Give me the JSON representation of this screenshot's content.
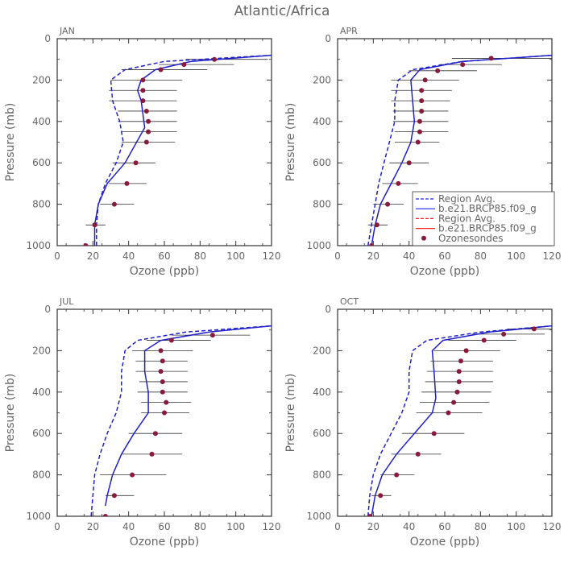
{
  "figure_title": "Atlantic/Africa",
  "colors": {
    "model": "#2020c8",
    "region": "#2020c8",
    "ozonesonde": "#8a1a3c",
    "whisker": "#333333",
    "axis": "#333333",
    "text": "#666666"
  },
  "legend": {
    "location": "JUL-panel right, overlapping APR panel",
    "entries": [
      {
        "label": "Region Avg.",
        "style": "dashed",
        "color": "#2020ff"
      },
      {
        "label": "b.e21.BRCP85.f09_g",
        "style": "solid",
        "color": "#2020ff"
      },
      {
        "label": "Region Avg.",
        "style": "dashed",
        "color": "#ff2020"
      },
      {
        "label": "b.e21.BRCP85.f09_g",
        "style": "solid",
        "color": "#ff2020"
      },
      {
        "label": "Ozonesondes",
        "style": "marker",
        "color": "#8a1a3c"
      }
    ]
  },
  "chart_data": [
    {
      "type": "line",
      "title": "JAN",
      "xlabel": "Ozone (ppb)",
      "ylabel": "Pressure (mb)",
      "xlim": [
        0,
        120
      ],
      "ylim": [
        1000,
        0
      ],
      "xticks": [
        "0",
        "20",
        "40",
        "60",
        "80",
        "100",
        "120"
      ],
      "yticks": [
        "0",
        "200",
        "400",
        "600",
        "800",
        "1000"
      ],
      "series": [
        {
          "style": "dashed",
          "x": [
            22,
            22,
            23,
            27,
            33,
            37,
            35,
            31,
            30,
            38,
            60,
            120
          ],
          "y": [
            1000,
            900,
            800,
            700,
            600,
            500,
            400,
            300,
            200,
            150,
            110,
            80
          ]
        },
        {
          "style": "solid",
          "x": [
            21,
            21,
            23,
            28,
            38,
            49,
            47,
            45,
            47,
            55,
            75,
            120
          ],
          "y": [
            1000,
            900,
            800,
            700,
            600,
            430,
            300,
            250,
            200,
            150,
            110,
            80
          ]
        }
      ],
      "sondes": [
        {
          "p": 100,
          "v": 88,
          "lo": 72,
          "hi": 118
        },
        {
          "p": 125,
          "v": 71,
          "lo": 57,
          "hi": 99
        },
        {
          "p": 150,
          "v": 58,
          "lo": 36,
          "hi": 84
        },
        {
          "p": 200,
          "v": 48,
          "lo": 30,
          "hi": 70
        },
        {
          "p": 250,
          "v": 48,
          "lo": 29,
          "hi": 67
        },
        {
          "p": 300,
          "v": 48,
          "lo": 29,
          "hi": 67
        },
        {
          "p": 350,
          "v": 50,
          "lo": 34,
          "hi": 67
        },
        {
          "p": 400,
          "v": 51,
          "lo": 34,
          "hi": 67
        },
        {
          "p": 450,
          "v": 51,
          "lo": 36,
          "hi": 67
        },
        {
          "p": 500,
          "v": 50,
          "lo": 36,
          "hi": 66
        },
        {
          "p": 600,
          "v": 44,
          "lo": 31,
          "hi": 55
        },
        {
          "p": 700,
          "v": 39,
          "lo": 29,
          "hi": 50
        },
        {
          "p": 800,
          "v": 32,
          "lo": 24,
          "hi": 43
        },
        {
          "p": 900,
          "v": 21,
          "lo": 16,
          "hi": 27
        },
        {
          "p": 1000,
          "v": 16,
          "lo": 15,
          "hi": 18
        }
      ]
    },
    {
      "type": "line",
      "title": "APR",
      "xlabel": "Ozone (ppb)",
      "ylabel": "Pressure (mb)",
      "xlim": [
        0,
        120
      ],
      "ylim": [
        1000,
        0
      ],
      "xticks": [
        "0",
        "20",
        "40",
        "60",
        "80",
        "100",
        "120"
      ],
      "yticks": [
        "0",
        "200",
        "400",
        "600",
        "800",
        "1000"
      ],
      "series": [
        {
          "style": "dashed",
          "x": [
            17,
            19,
            21,
            23,
            26,
            29,
            32,
            32,
            34,
            42,
            70,
            120
          ],
          "y": [
            1000,
            900,
            800,
            700,
            600,
            500,
            400,
            300,
            200,
            150,
            110,
            80
          ]
        },
        {
          "style": "solid",
          "x": [
            19,
            21,
            24,
            30,
            36,
            41,
            43,
            42,
            41,
            46,
            70,
            120
          ],
          "y": [
            1000,
            900,
            800,
            700,
            600,
            500,
            400,
            300,
            200,
            150,
            110,
            80
          ]
        }
      ],
      "sondes": [
        {
          "p": 95,
          "v": 86,
          "lo": 64,
          "hi": 120
        },
        {
          "p": 125,
          "v": 70,
          "lo": 57,
          "hi": 92
        },
        {
          "p": 155,
          "v": 56,
          "lo": 40,
          "hi": 78
        },
        {
          "p": 200,
          "v": 49,
          "lo": 30,
          "hi": 68
        },
        {
          "p": 250,
          "v": 47,
          "lo": 30,
          "hi": 64
        },
        {
          "p": 300,
          "v": 47,
          "lo": 30,
          "hi": 63
        },
        {
          "p": 350,
          "v": 47,
          "lo": 31,
          "hi": 62
        },
        {
          "p": 400,
          "v": 46,
          "lo": 31,
          "hi": 62
        },
        {
          "p": 450,
          "v": 46,
          "lo": 32,
          "hi": 62
        },
        {
          "p": 500,
          "v": 45,
          "lo": 32,
          "hi": 57
        },
        {
          "p": 600,
          "v": 40,
          "lo": 29,
          "hi": 51
        },
        {
          "p": 700,
          "v": 34,
          "lo": 25,
          "hi": 45
        },
        {
          "p": 800,
          "v": 28,
          "lo": 20,
          "hi": 37
        },
        {
          "p": 900,
          "v": 22,
          "lo": 17,
          "hi": 28
        },
        {
          "p": 1000,
          "v": 19,
          "lo": 17,
          "hi": 21
        }
      ]
    },
    {
      "type": "line",
      "title": "JUL",
      "xlabel": "Ozone (ppb)",
      "ylabel": "Pressure (mb)",
      "xlim": [
        0,
        120
      ],
      "ylim": [
        1000,
        0
      ],
      "xticks": [
        "0",
        "20",
        "40",
        "60",
        "80",
        "100",
        "120"
      ],
      "yticks": [
        "0",
        "200",
        "400",
        "600",
        "800",
        "1000"
      ],
      "series": [
        {
          "style": "dashed",
          "x": [
            19,
            20,
            21,
            24,
            28,
            33,
            36,
            36,
            38,
            45,
            72,
            120
          ],
          "y": [
            1000,
            900,
            800,
            700,
            600,
            500,
            400,
            300,
            200,
            150,
            110,
            80
          ]
        },
        {
          "style": "solid",
          "x": [
            27,
            28,
            31,
            36,
            43,
            51,
            51,
            49,
            49,
            58,
            85,
            120
          ],
          "y": [
            950,
            900,
            800,
            700,
            600,
            500,
            400,
            300,
            200,
            150,
            110,
            80
          ]
        }
      ],
      "sondes": [
        {
          "p": 125,
          "v": 87,
          "lo": 64,
          "hi": 108
        },
        {
          "p": 150,
          "v": 64,
          "lo": 50,
          "hi": 86
        },
        {
          "p": 200,
          "v": 58,
          "lo": 42,
          "hi": 76
        },
        {
          "p": 250,
          "v": 59,
          "lo": 44,
          "hi": 73
        },
        {
          "p": 300,
          "v": 58,
          "lo": 44,
          "hi": 73
        },
        {
          "p": 350,
          "v": 59,
          "lo": 46,
          "hi": 73
        },
        {
          "p": 400,
          "v": 59,
          "lo": 45,
          "hi": 73
        },
        {
          "p": 450,
          "v": 61,
          "lo": 47,
          "hi": 75
        },
        {
          "p": 500,
          "v": 60,
          "lo": 47,
          "hi": 74
        },
        {
          "p": 600,
          "v": 55,
          "lo": 40,
          "hi": 70
        },
        {
          "p": 700,
          "v": 53,
          "lo": 36,
          "hi": 70
        },
        {
          "p": 800,
          "v": 42,
          "lo": 24,
          "hi": 61
        },
        {
          "p": 900,
          "v": 32,
          "lo": 27,
          "hi": 43
        },
        {
          "p": 1000,
          "v": 27,
          "lo": 23,
          "hi": 35
        }
      ]
    },
    {
      "type": "line",
      "title": "OCT",
      "xlabel": "Ozone (ppb)",
      "ylabel": "Pressure (mb)",
      "xlim": [
        0,
        120
      ],
      "ylim": [
        1000,
        0
      ],
      "xticks": [
        "0",
        "20",
        "40",
        "60",
        "80",
        "100",
        "120"
      ],
      "yticks": [
        "0",
        "200",
        "400",
        "600",
        "800",
        "1000"
      ],
      "series": [
        {
          "style": "dashed",
          "x": [
            17,
            18,
            20,
            24,
            30,
            36,
            40,
            40,
            42,
            50,
            80,
            120
          ],
          "y": [
            1000,
            900,
            800,
            700,
            600,
            500,
            400,
            300,
            200,
            150,
            110,
            80
          ]
        },
        {
          "style": "solid",
          "x": [
            19,
            21,
            25,
            33,
            43,
            53,
            55,
            54,
            53,
            59,
            85,
            120
          ],
          "y": [
            1000,
            900,
            800,
            700,
            600,
            500,
            430,
            300,
            200,
            150,
            110,
            80
          ]
        }
      ],
      "sondes": [
        {
          "p": 95,
          "v": 110,
          "lo": 95,
          "hi": 120
        },
        {
          "p": 120,
          "v": 93,
          "lo": 75,
          "hi": 116
        },
        {
          "p": 150,
          "v": 82,
          "lo": 62,
          "hi": 100
        },
        {
          "p": 200,
          "v": 72,
          "lo": 54,
          "hi": 91
        },
        {
          "p": 250,
          "v": 69,
          "lo": 52,
          "hi": 87
        },
        {
          "p": 300,
          "v": 68,
          "lo": 50,
          "hi": 87
        },
        {
          "p": 350,
          "v": 68,
          "lo": 49,
          "hi": 87
        },
        {
          "p": 400,
          "v": 67,
          "lo": 47,
          "hi": 86
        },
        {
          "p": 450,
          "v": 65,
          "lo": 46,
          "hi": 85
        },
        {
          "p": 500,
          "v": 62,
          "lo": 44,
          "hi": 81
        },
        {
          "p": 600,
          "v": 54,
          "lo": 36,
          "hi": 71
        },
        {
          "p": 700,
          "v": 45,
          "lo": 30,
          "hi": 58
        },
        {
          "p": 800,
          "v": 33,
          "lo": 24,
          "hi": 43
        },
        {
          "p": 900,
          "v": 24,
          "lo": 19,
          "hi": 30
        },
        {
          "p": 1000,
          "v": 18,
          "lo": 17,
          "hi": 19
        }
      ]
    }
  ]
}
